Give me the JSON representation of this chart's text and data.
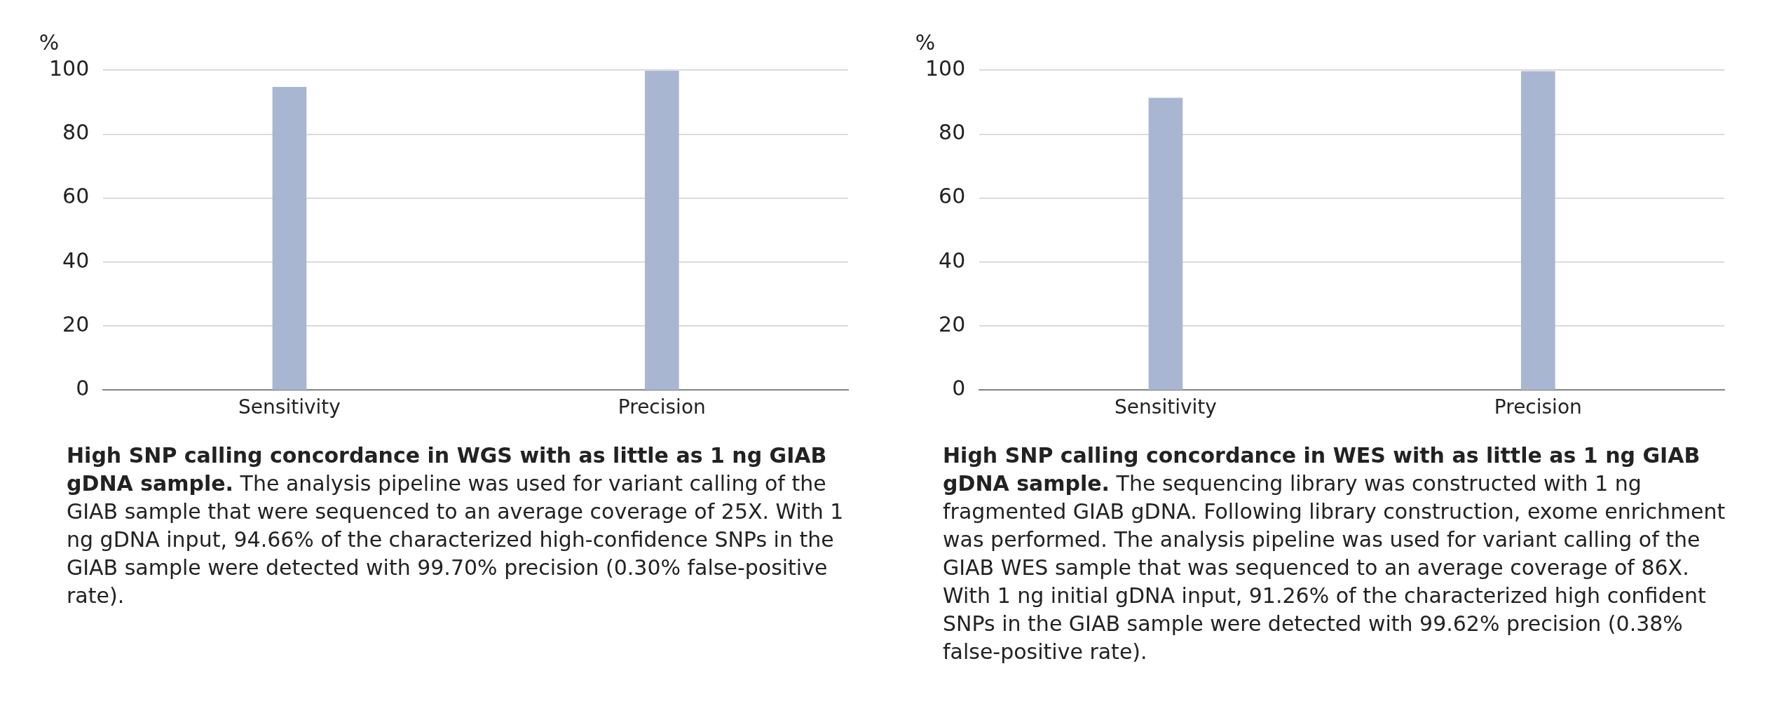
{
  "chart_data": [
    {
      "type": "bar",
      "title": "High SNP calling concordance in WGS with as little as 1 ng GIAB gDNA sample.",
      "ylabel": "%",
      "categories": [
        "Sensitivity",
        "Precision"
      ],
      "values": [
        94.66,
        99.7
      ],
      "color": "#a9b6d2",
      "ylim": [
        0,
        100
      ],
      "yticks": [
        0,
        20,
        40,
        60,
        80,
        100
      ],
      "grid": "y",
      "annotations": [
        "The analysis pipeline was used for variant calling of the GIAB sample that were sequenced to an average coverage of 25X. With 1 ng gDNA input, 94.66% of the characterized high-confidence SNPs in the GIAB sample were detected with 99.70% precision (0.30% false-positive rate)."
      ]
    },
    {
      "type": "bar",
      "title": "High SNP calling concordance in WES with as little as 1 ng GIAB gDNA sample.",
      "ylabel": "%",
      "categories": [
        "Sensitivity",
        "Precision"
      ],
      "values": [
        91.26,
        99.62
      ],
      "color": "#a9b6d2",
      "ylim": [
        0,
        100
      ],
      "yticks": [
        0,
        20,
        40,
        60,
        80,
        100
      ],
      "grid": "y",
      "annotations": [
        "The sequencing library was constructed with 1 ng fragmented GIAB gDNA. Following library construction, exome enrichment was performed. The analysis pipeline was used for variant calling of the GIAB WES sample that was sequenced to an average coverage of 86X. With 1 ng initial gDNA input, 91.26% of the characterized high confident SNPs in the GIAB sample were detected with 99.62% precision (0.38% false-positive rate)."
      ]
    }
  ]
}
